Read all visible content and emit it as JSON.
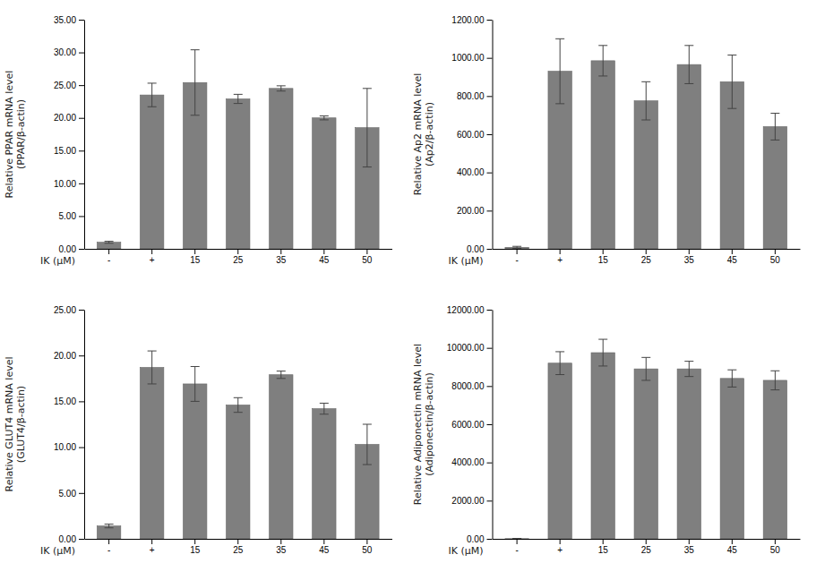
{
  "chart_data": [
    {
      "type": "bar",
      "categories": [
        "-",
        "+",
        "15",
        "25",
        "35",
        "45",
        "50"
      ],
      "values": [
        1.0,
        23.5,
        25.4,
        22.9,
        24.5,
        20.0,
        18.5
      ],
      "errors": [
        0.15,
        1.8,
        5.0,
        0.7,
        0.4,
        0.3,
        6.0
      ],
      "ylabel": "Relative PPAR mRNA level\n(PPAR/β-actin)",
      "xlabel": "IK (μM)",
      "ylim": [
        0,
        35
      ],
      "yticks": [
        {
          "value": 0.0,
          "label": "0.00"
        },
        {
          "value": 5.0,
          "label": "5.00"
        },
        {
          "value": 10.0,
          "label": "10.00"
        },
        {
          "value": 15.0,
          "label": "15.00"
        },
        {
          "value": 20.0,
          "label": "20.00"
        },
        {
          "value": 25.0,
          "label": "25.00"
        },
        {
          "value": 30.0,
          "label": "30.00"
        },
        {
          "value": 35.0,
          "label": "35.00"
        }
      ],
      "color": "#7f7f7f",
      "grid": false
    },
    {
      "type": "bar",
      "categories": [
        "-",
        "+",
        "15",
        "25",
        "35",
        "45",
        "50"
      ],
      "values": [
        8.0,
        930.0,
        985.0,
        775.0,
        965.0,
        875.0,
        640.0
      ],
      "errors": [
        5.0,
        170.0,
        80.0,
        100.0,
        100.0,
        140.0,
        70.0
      ],
      "ylabel": "Relative Ap2 mRNA level\n(Ap2/β-actin)",
      "xlabel": "IK (μM)",
      "ylim": [
        0,
        1200
      ],
      "yticks": [
        {
          "value": 0.0,
          "label": "0.00"
        },
        {
          "value": 200.0,
          "label": "200.00"
        },
        {
          "value": 400.0,
          "label": "400.00"
        },
        {
          "value": 600.0,
          "label": "600.00"
        },
        {
          "value": 800.0,
          "label": "800.00"
        },
        {
          "value": 1000.0,
          "label": "1000.00"
        },
        {
          "value": 1200.0,
          "label": "1200.00"
        }
      ],
      "color": "#7f7f7f",
      "grid": false
    },
    {
      "type": "bar",
      "categories": [
        "-",
        "+",
        "15",
        "25",
        "35",
        "45",
        "50"
      ],
      "values": [
        1.4,
        18.7,
        16.9,
        14.6,
        17.9,
        14.2,
        10.3
      ],
      "errors": [
        0.2,
        1.8,
        1.9,
        0.8,
        0.4,
        0.6,
        2.2
      ],
      "ylabel": "Relative GLUT4 mRNA level\n(GLUT4/β-actin)",
      "xlabel": "IK (μM)",
      "ylim": [
        0,
        25
      ],
      "yticks": [
        {
          "value": 0.0,
          "label": "0.00"
        },
        {
          "value": 5.0,
          "label": "5.00"
        },
        {
          "value": 10.0,
          "label": "10.00"
        },
        {
          "value": 15.0,
          "label": "15.00"
        },
        {
          "value": 20.0,
          "label": "20.00"
        },
        {
          "value": 25.0,
          "label": "25.00"
        }
      ],
      "color": "#7f7f7f",
      "grid": false
    },
    {
      "type": "bar",
      "categories": [
        "-",
        "+",
        "15",
        "25",
        "35",
        "45",
        "50"
      ],
      "values": [
        10.0,
        9200.0,
        9750.0,
        8900.0,
        8900.0,
        8400.0,
        8300.0
      ],
      "errors": [
        5.0,
        600.0,
        700.0,
        600.0,
        400.0,
        450.0,
        500.0
      ],
      "ylabel": "Relative Adiponectin mRNA level\n(Adiponectin/β-actin)",
      "xlabel": "IK (μM)",
      "ylim": [
        0,
        12000
      ],
      "yticks": [
        {
          "value": 0.0,
          "label": "0.00"
        },
        {
          "value": 2000.0,
          "label": "2000.00"
        },
        {
          "value": 4000.0,
          "label": "4000.00"
        },
        {
          "value": 6000.0,
          "label": "6000.00"
        },
        {
          "value": 8000.0,
          "label": "8000.00"
        },
        {
          "value": 10000.0,
          "label": "10000.00"
        },
        {
          "value": 12000.0,
          "label": "12000.00"
        }
      ],
      "color": "#7f7f7f",
      "grid": false
    }
  ]
}
